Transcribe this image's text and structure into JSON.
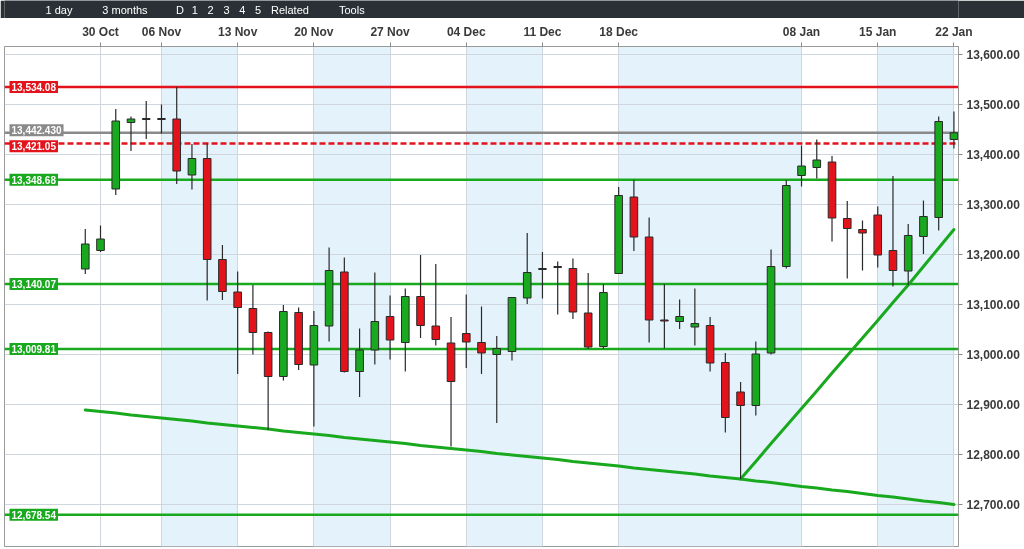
{
  "chart_data": {
    "type": "candlestick",
    "annotations": [
      "1 day",
      "3 months",
      "D",
      "1",
      "2",
      "3",
      "4",
      "5",
      "Related",
      "Tools"
    ],
    "categories": [
      null,
      "30 Oct",
      null,
      null,
      null,
      "06 Nov",
      null,
      null,
      null,
      null,
      "13 Nov",
      null,
      null,
      null,
      null,
      "20 Nov",
      null,
      null,
      null,
      null,
      "27 Nov",
      null,
      null,
      null,
      null,
      "04 Dec",
      null,
      null,
      null,
      null,
      "11 Dec",
      null,
      null,
      null,
      null,
      "18 Dec",
      null,
      null,
      null,
      null,
      null,
      null,
      null,
      null,
      null,
      null,
      null,
      "08 Jan",
      null,
      null,
      null,
      null,
      "15 Jan",
      null,
      null,
      null,
      null,
      "22 Jan"
    ],
    "ohlc": [
      [
        13170,
        13250,
        13160,
        13220
      ],
      [
        13207,
        13257,
        13204,
        13230
      ],
      [
        13330,
        13490,
        13318,
        13466
      ],
      [
        13463,
        13475,
        13406,
        13470
      ],
      [
        13469,
        13506,
        13430,
        13471
      ],
      [
        13469,
        13499,
        13441,
        13471
      ],
      [
        13470,
        13534.08,
        13340,
        13366
      ],
      [
        13358,
        13420,
        13329,
        13391
      ],
      [
        13391,
        13421.05,
        13107,
        13189
      ],
      [
        13189,
        13218,
        13108,
        13125
      ],
      [
        13124,
        13165,
        12960,
        13093
      ],
      [
        13091,
        13138,
        12999,
        13043
      ],
      [
        13043,
        13045,
        12848,
        12955
      ],
      [
        12955,
        13098,
        12947,
        13085
      ],
      [
        13083,
        13093,
        12968,
        12979
      ],
      [
        12978,
        13086,
        12855,
        13057
      ],
      [
        13056,
        13213,
        13025,
        13167
      ],
      [
        13164,
        13193,
        12963,
        12965
      ],
      [
        12965,
        13051,
        12914,
        13008
      ],
      [
        13008,
        13163,
        12979,
        13065
      ],
      [
        13075,
        13117,
        12989,
        13028
      ],
      [
        13023,
        13131,
        12965,
        13115
      ],
      [
        13115,
        13198,
        13032,
        13057
      ],
      [
        13056,
        13180,
        13017,
        13029
      ],
      [
        13022,
        13074,
        12815,
        12945
      ],
      [
        13041,
        13119,
        12972,
        13024
      ],
      [
        13023,
        13095,
        12960,
        13002
      ],
      [
        12999,
        13036,
        12862,
        13011
      ],
      [
        13005,
        13113,
        12987,
        13113
      ],
      [
        13112,
        13242,
        13100,
        13163
      ],
      [
        13169,
        13204,
        13111,
        13171
      ],
      [
        13173,
        13185,
        13079,
        13175
      ],
      [
        13171,
        13191,
        13070,
        13084
      ],
      [
        13082,
        13162,
        13009.81,
        13014
      ],
      [
        13015,
        13140,
        13010,
        13123
      ],
      [
        13161,
        13334,
        13161,
        13317
      ],
      [
        13314,
        13348.68,
        13206,
        13234
      ],
      [
        13234,
        13273,
        13023,
        13068
      ],
      [
        13068,
        13140.07,
        13011,
        13066
      ],
      [
        13065,
        13109,
        13050,
        13075
      ],
      [
        13054,
        13131,
        13017,
        13061
      ],
      [
        13057,
        13074,
        12965,
        12982
      ],
      [
        12983,
        13002,
        12843,
        12873
      ],
      [
        12924,
        12944,
        12750,
        12897
      ],
      [
        12897,
        13025,
        12877,
        13000
      ],
      [
        13002,
        13209,
        12999,
        13175
      ],
      [
        13175,
        13348,
        13171,
        13337
      ],
      [
        13357,
        13417,
        13335,
        13376
      ],
      [
        13373,
        13429,
        13351,
        13388
      ],
      [
        13384,
        13396,
        13225,
        13272
      ],
      [
        13271,
        13306,
        13151,
        13251
      ],
      [
        13249,
        13267,
        13167,
        13242
      ],
      [
        13278,
        13295,
        13173,
        13198
      ],
      [
        13207,
        13356,
        13135,
        13167
      ],
      [
        13166,
        13260,
        13138,
        13237
      ],
      [
        13235,
        13307,
        13200,
        13275
      ],
      [
        13273,
        13475,
        13247,
        13465
      ],
      [
        13429,
        13485,
        13411,
        13442.43
      ]
    ],
    "colors": [
      "#19a91e",
      "#19a91e",
      "#19a91e",
      "#19a91e",
      "#19a91e",
      "#19a91e",
      "#e3131b",
      "#19a91e",
      "#e3131b",
      "#e3131b",
      "#e3131b",
      "#e3131b",
      "#e3131b",
      "#19a91e",
      "#e3131b",
      "#19a91e",
      "#19a91e",
      "#e3131b",
      "#19a91e",
      "#19a91e",
      "#e3131b",
      "#19a91e",
      "#e3131b",
      "#e3131b",
      "#e3131b",
      "#e3131b",
      "#e3131b",
      "#19a91e",
      "#19a91e",
      "#19a91e",
      "#19a91e",
      "#19a91e",
      "#e3131b",
      "#e3131b",
      "#19a91e",
      "#19a91e",
      "#e3131b",
      "#e3131b",
      "#e3131b",
      "#19a91e",
      "#19a91e",
      "#e3131b",
      "#e3131b",
      "#e3131b",
      "#19a91e",
      "#19a91e",
      "#19a91e",
      "#19a91e",
      "#19a91e",
      "#e3131b",
      "#e3131b",
      "#e3131b",
      "#e3131b",
      "#e3131b",
      "#19a91e",
      "#19a91e",
      "#19a91e",
      "#19a91e"
    ],
    "series": [
      {
        "type": "line",
        "color": "#19a91e",
        "values": [
          12888,
          12885,
          12882,
          12878,
          12875,
          12872,
          12869,
          12866,
          12862,
          12859,
          12856,
          12853,
          12850,
          12846,
          12843,
          12840,
          12837,
          12833,
          12830,
          12827,
          12824,
          12821,
          12817,
          12814,
          12811,
          12808,
          12805,
          12801,
          12798,
          12795,
          12792,
          12789,
          12785,
          12782,
          12779,
          12776,
          12772,
          12769,
          12766,
          12763,
          12760,
          12756,
          12753,
          12750,
          12746,
          12743,
          12739,
          12735,
          12732,
          12728,
          12725,
          12721,
          12717,
          12714,
          12710,
          12706,
          12703,
          12699
        ]
      },
      {
        "type": "line",
        "color": "#19a91e",
        "values": [
          null,
          null,
          null,
          null,
          null,
          null,
          null,
          null,
          null,
          null,
          null,
          null,
          null,
          null,
          null,
          null,
          null,
          null,
          null,
          null,
          null,
          null,
          null,
          null,
          null,
          null,
          null,
          null,
          null,
          null,
          null,
          null,
          null,
          null,
          null,
          null,
          null,
          null,
          null,
          null,
          null,
          null,
          null,
          12750,
          12785,
          12821,
          12856,
          12891,
          12926,
          12962,
          12997,
          13032,
          13067,
          13103,
          13138,
          13175,
          13212,
          13249
        ]
      }
    ],
    "ref_lines": [
      {
        "axis": "y",
        "value": 13534.08,
        "label": "13,534.08",
        "color": "#e3131b"
      },
      {
        "axis": "y",
        "value": 13442.43,
        "label": "13,442.430",
        "color": "#8a8a8a"
      },
      {
        "axis": "y",
        "value": 13421.05,
        "label": "13,421.05",
        "color": "#e3131b",
        "line_style": "dashed"
      },
      {
        "axis": "y",
        "value": 13348.68,
        "label": "13,348.68",
        "color": "#19a91e"
      },
      {
        "axis": "y",
        "value": 13140.07,
        "label": "13,140.07",
        "color": "#19a91e"
      },
      {
        "axis": "y",
        "value": 13009.81,
        "label": "13,009.81",
        "color": "#19a91e"
      },
      {
        "axis": "y",
        "value": 12678.54,
        "label": "12,678.54",
        "color": "#19a91e"
      }
    ],
    "bands": [
      {
        "axis": "x",
        "from": "06 Nov",
        "to": "13 Nov",
        "color": "#e4f2fc"
      },
      {
        "axis": "x",
        "from": "20 Nov",
        "to": "27 Nov",
        "color": "#e4f2fc"
      },
      {
        "axis": "x",
        "from": "04 Dec",
        "to": "11 Dec",
        "color": "#e4f2fc"
      },
      {
        "axis": "x",
        "from": "18 Dec",
        "to": "08 Jan",
        "color": "#e4f2fc"
      },
      {
        "axis": "x",
        "from": "15 Jan",
        "to": "22 Jan",
        "color": "#e4f2fc"
      }
    ],
    "ylim": [
      12615,
      13615
    ],
    "yticks": [
      {
        "value": 12700,
        "label": "12,700.00"
      },
      {
        "value": 12800,
        "label": "12,800.00"
      },
      {
        "value": 12900,
        "label": "12,900.00"
      },
      {
        "value": 13000,
        "label": "13,000.00"
      },
      {
        "value": 13100,
        "label": "13,100.00"
      },
      {
        "value": 13200,
        "label": "13,200.00"
      },
      {
        "value": 13300,
        "label": "13,300.00"
      },
      {
        "value": 13400,
        "label": "13,400.00"
      },
      {
        "value": 13500,
        "label": "13,500.00"
      },
      {
        "value": 13600,
        "label": "13,600.00"
      }
    ],
    "grid": true
  }
}
